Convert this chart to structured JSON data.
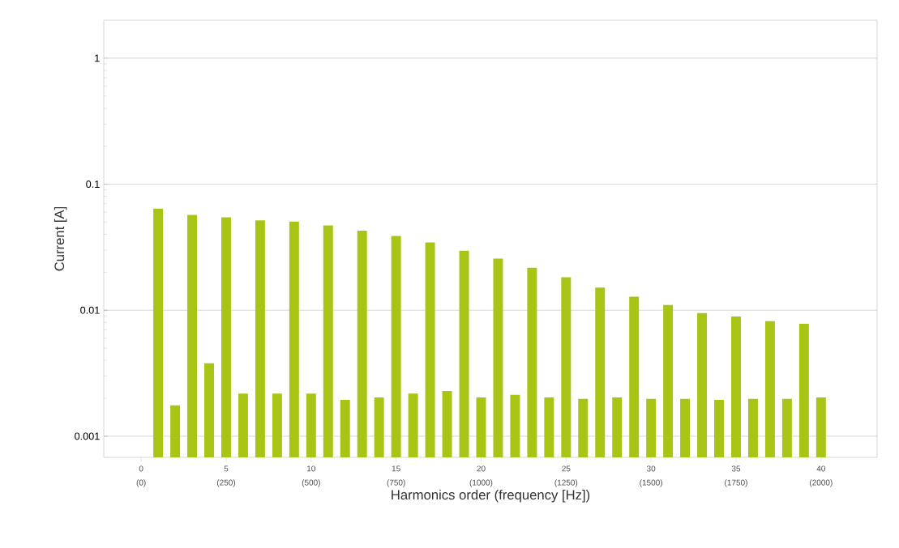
{
  "chart_data": {
    "type": "bar",
    "xlabel": "Harmonics order (frequency [Hz])",
    "ylabel": "Current [A]",
    "log": "y",
    "grid": "y",
    "color": "#a9c414",
    "x": [
      1,
      2,
      3,
      4,
      5,
      6,
      7,
      8,
      9,
      10,
      11,
      12,
      13,
      14,
      15,
      16,
      17,
      18,
      19,
      20,
      21,
      22,
      23,
      24,
      25,
      26,
      27,
      28,
      29,
      30,
      31,
      32,
      33,
      34,
      35,
      36,
      37,
      38,
      39,
      40
    ],
    "values": [
      0.064,
      0.00176,
      0.057,
      0.0038,
      0.0545,
      0.00218,
      0.0516,
      0.00218,
      0.0504,
      0.00218,
      0.047,
      0.00194,
      0.0427,
      0.00203,
      0.0389,
      0.00218,
      0.0345,
      0.00229,
      0.0296,
      0.00203,
      0.0257,
      0.00213,
      0.0217,
      0.00203,
      0.0183,
      0.00198,
      0.0151,
      0.00203,
      0.0128,
      0.00198,
      0.011,
      0.00198,
      0.0095,
      0.00194,
      0.0089,
      0.00198,
      0.0082,
      0.00198,
      0.0078,
      0.00203
    ],
    "xlim": [
      -2.2,
      43.3
    ],
    "ylim": [
      0.00068,
      2
    ],
    "xticks": [
      0,
      5,
      10,
      15,
      20,
      25,
      30,
      35,
      40
    ],
    "x2lim": [
      -110,
      2165
    ],
    "x2ticks": [
      {
        "value": 0,
        "label": "(0)"
      },
      {
        "value": 250,
        "label": "(250)"
      },
      {
        "value": 500,
        "label": "(500)"
      },
      {
        "value": 750,
        "label": "(750)"
      },
      {
        "value": 1000,
        "label": "(1000)"
      },
      {
        "value": 1250,
        "label": "(1250)"
      },
      {
        "value": 1500,
        "label": "(1500)"
      },
      {
        "value": 1750,
        "label": "(1750)"
      },
      {
        "value": 2000,
        "label": "(2000)"
      }
    ],
    "yticks": [
      0.001,
      0.01,
      0.1,
      1
    ]
  }
}
